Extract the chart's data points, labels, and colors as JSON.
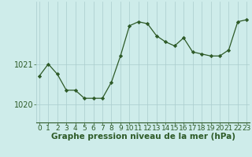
{
  "hours": [
    0,
    1,
    2,
    3,
    4,
    5,
    6,
    7,
    8,
    9,
    10,
    11,
    12,
    13,
    14,
    15,
    16,
    17,
    18,
    19,
    20,
    21,
    22,
    23
  ],
  "pressure": [
    1020.7,
    1021.0,
    1020.75,
    1020.35,
    1020.35,
    1020.15,
    1020.15,
    1020.15,
    1020.55,
    1021.2,
    1021.95,
    1022.05,
    1022.0,
    1021.7,
    1021.55,
    1021.45,
    1021.65,
    1021.3,
    1021.25,
    1021.2,
    1021.2,
    1021.35,
    1022.05,
    1022.1
  ],
  "line_color": "#2d5a27",
  "marker": "D",
  "marker_size": 2.2,
  "bg_color": "#ceecea",
  "grid_color": "#aacccc",
  "ylabel_ticks": [
    1020,
    1021
  ],
  "xlabel": "Graphe pression niveau de la mer (hPa)",
  "xlabel_fontsize": 7.5,
  "tick_fontsize": 7,
  "ylim": [
    1019.55,
    1022.55
  ],
  "xlim": [
    -0.3,
    23.3
  ]
}
